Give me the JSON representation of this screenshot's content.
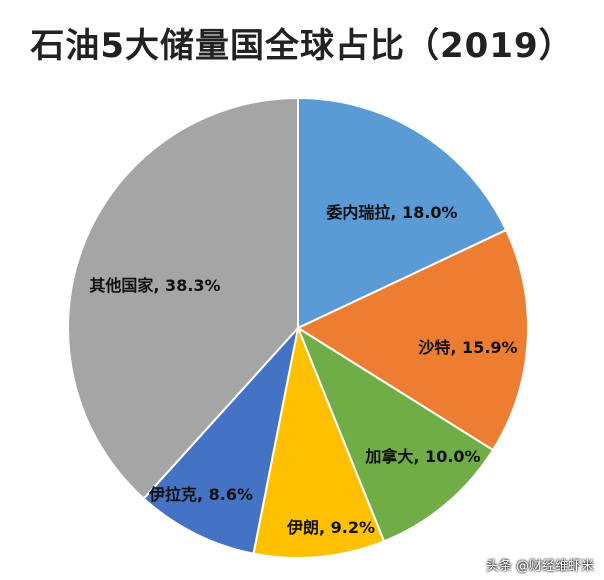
{
  "chart_data": {
    "type": "pie",
    "title": "石油5大储量国全球占比（2019）",
    "slices": [
      {
        "label": "委内瑞拉",
        "value": 18.0,
        "display": "委内瑞拉, 18.0%",
        "color": "#5B9BD5"
      },
      {
        "label": "沙特",
        "value": 15.9,
        "display": "沙特, 15.9%",
        "color": "#ED7D31"
      },
      {
        "label": "加拿大",
        "value": 10.0,
        "display": "加拿大, 10.0%",
        "color": "#70AD47"
      },
      {
        "label": "伊朗",
        "value": 9.2,
        "display": "伊朗, 9.2%",
        "color": "#FFC000"
      },
      {
        "label": "伊拉克",
        "value": 8.6,
        "display": "伊拉克, 8.6%",
        "color": "#4472C4"
      },
      {
        "label": "其他国家",
        "value": 38.3,
        "display": "其他国家, 38.3%",
        "color": "#A5A5A5"
      }
    ],
    "start": "12 o'clock",
    "direction": "clockwise"
  },
  "watermark": "头条 @财经维虾米"
}
